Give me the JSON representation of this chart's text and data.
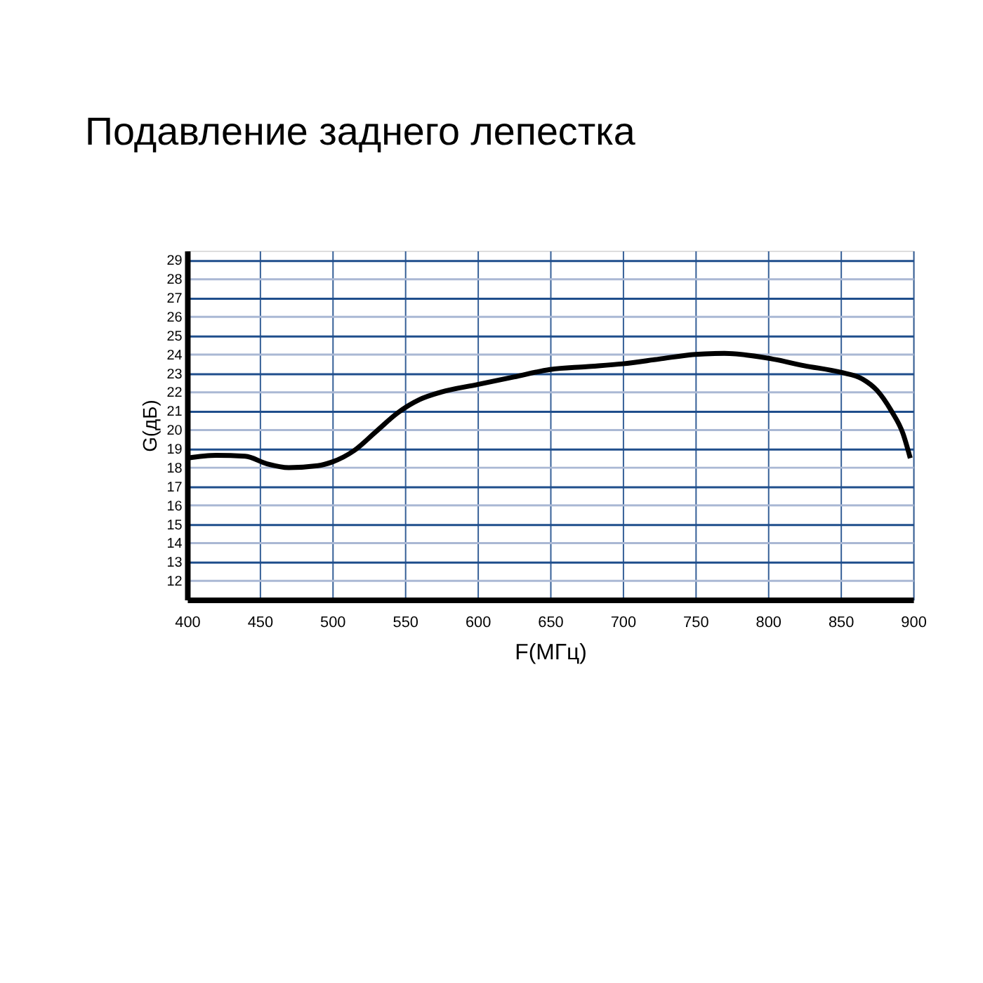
{
  "chart_data": {
    "type": "line",
    "title": "Подавление заднего лепестка",
    "xlabel": "F(МГц)",
    "ylabel": "G(дБ)",
    "x": [
      400,
      420,
      440,
      455,
      470,
      490,
      500,
      515,
      530,
      545,
      560,
      575,
      600,
      625,
      650,
      675,
      700,
      725,
      750,
      770,
      800,
      825,
      850,
      865,
      875,
      885,
      893,
      898
    ],
    "series": [
      {
        "color": "#000000",
        "values": [
          18.5,
          18.65,
          18.6,
          18.2,
          18.0,
          18.1,
          18.3,
          18.9,
          19.9,
          20.9,
          21.6,
          22.0,
          22.4,
          22.8,
          23.2,
          23.35,
          23.5,
          23.75,
          24.0,
          24.05,
          23.8,
          23.4,
          23.05,
          22.7,
          22.1,
          21.0,
          19.8,
          18.5
        ]
      }
    ],
    "xlim": [
      400,
      900
    ],
    "xticks": [
      400,
      450,
      500,
      550,
      600,
      650,
      700,
      750,
      800,
      850,
      900
    ],
    "ylim": [
      11,
      29.5
    ],
    "yticks": [
      12,
      13,
      14,
      15,
      16,
      17,
      18,
      19,
      20,
      21,
      22,
      23,
      24,
      25,
      26,
      27,
      28,
      29
    ],
    "grid": true,
    "marker": "none",
    "line_style": "solid"
  }
}
